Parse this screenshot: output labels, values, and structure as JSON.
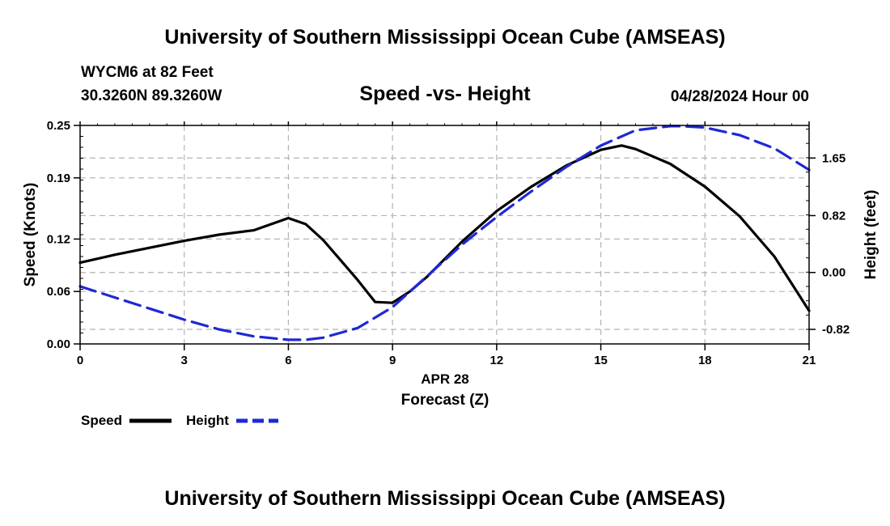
{
  "header": {
    "title": "University of Southern Mississippi Ocean Cube (AMSEAS)",
    "station": "WYCM6 at 82 Feet",
    "coords": "30.3260N  89.3260W",
    "chart_title": "Speed -vs- Height",
    "datetime": "04/28/2024 Hour 00"
  },
  "footer": {
    "title": "University of Southern Mississippi Ocean Cube (AMSEAS)"
  },
  "colors": {
    "speed": "#000000",
    "height": "#1f28d6",
    "grid": "#b4b4b4"
  },
  "chart_data": {
    "type": "line",
    "title": "Speed -vs- Height",
    "xlabel": "Forecast (Z)",
    "x_date_label": "APR 28",
    "ylabel": "Speed (Knots)",
    "y2label": "Height (feet)",
    "xlim": [
      0,
      21
    ],
    "ylim": [
      0,
      0.25
    ],
    "y2lim": [
      -1.03,
      2.12
    ],
    "x_ticks": [
      0,
      3,
      6,
      9,
      12,
      15,
      18,
      21
    ],
    "x_tick_labels": [
      "0",
      "3",
      "6",
      "9",
      "12",
      "15",
      "18",
      "21"
    ],
    "y_ticks": [
      0.0,
      0.06,
      0.12,
      0.19,
      0.25
    ],
    "y_tick_labels": [
      "0.00",
      "0.06",
      "0.12",
      "0.19",
      "0.25"
    ],
    "y2_ticks": [
      -0.82,
      0.0,
      0.82,
      1.65
    ],
    "y2_tick_labels": [
      "-0.82",
      "0.00",
      "0.82",
      "1.65"
    ],
    "series": [
      {
        "name": "Speed",
        "axis": "left",
        "style": "solid",
        "x": [
          0,
          1,
          2,
          3,
          4,
          5,
          6,
          6.5,
          7,
          7.5,
          8,
          8.5,
          9,
          9.5,
          10,
          11,
          12,
          13,
          14,
          15,
          15.6,
          16,
          17,
          18,
          19,
          20,
          21
        ],
        "values": [
          0.093,
          0.102,
          0.11,
          0.118,
          0.125,
          0.13,
          0.144,
          0.137,
          0.119,
          0.096,
          0.073,
          0.048,
          0.047,
          0.06,
          0.077,
          0.117,
          0.152,
          0.18,
          0.204,
          0.222,
          0.227,
          0.223,
          0.206,
          0.18,
          0.146,
          0.1,
          0.038
        ]
      },
      {
        "name": "Height",
        "axis": "right",
        "style": "dashed",
        "x": [
          0,
          1,
          2,
          3,
          4,
          5,
          6,
          6.5,
          7,
          8,
          9,
          10,
          11,
          12,
          13,
          14,
          15,
          16,
          17,
          17.3,
          18,
          19,
          20,
          21
        ],
        "values": [
          -0.2,
          -0.36,
          -0.52,
          -0.68,
          -0.82,
          -0.92,
          -0.97,
          -0.97,
          -0.94,
          -0.8,
          -0.5,
          -0.05,
          0.4,
          0.8,
          1.17,
          1.52,
          1.83,
          2.05,
          2.11,
          2.11,
          2.09,
          1.98,
          1.79,
          1.48
        ]
      }
    ],
    "legend": [
      {
        "label": "Speed",
        "style": "solid"
      },
      {
        "label": "Height",
        "style": "dashed"
      }
    ]
  }
}
